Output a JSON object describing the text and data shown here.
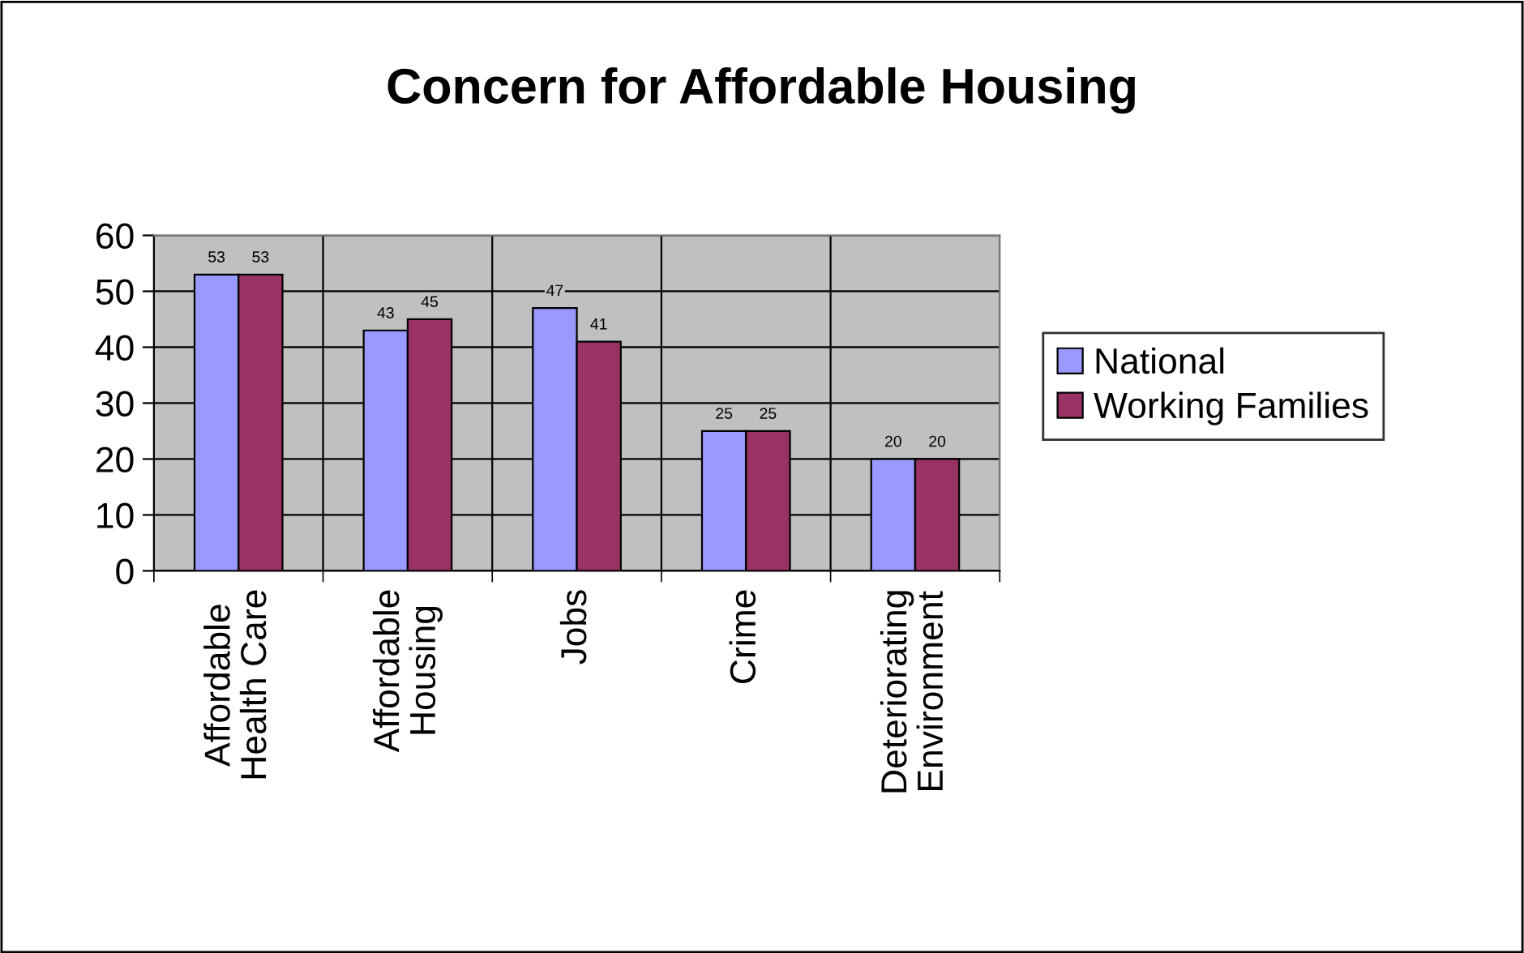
{
  "chart_data": {
    "type": "bar",
    "title": "Concern for Affordable Housing",
    "categories": [
      "Affordable\nHealth Care",
      "Affordable\nHousing",
      "Jobs",
      "Crime",
      "Deteriorating\nEnvironment"
    ],
    "series": [
      {
        "name": "National",
        "color": "#9999ff",
        "values": [
          53,
          43,
          47,
          25,
          20
        ]
      },
      {
        "name": "Working Families",
        "color": "#993366",
        "values": [
          53,
          45,
          41,
          25,
          20
        ]
      }
    ],
    "ylim": [
      0,
      60
    ],
    "yticks": [
      0,
      10,
      20,
      30,
      40,
      50,
      60
    ],
    "grid": true,
    "data_labels": true,
    "legend": "right"
  }
}
